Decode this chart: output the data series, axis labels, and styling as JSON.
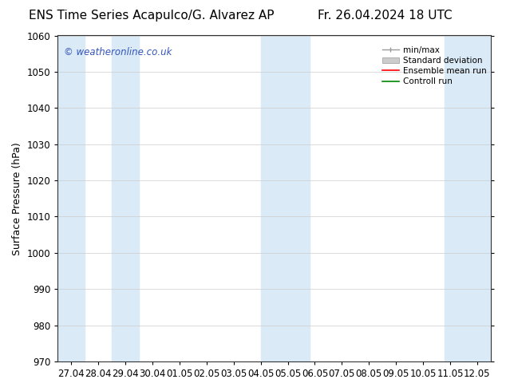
{
  "title_left": "ENS Time Series Acapulco/G. Alvarez AP",
  "title_right": "Fr. 26.04.2024 18 UTC",
  "ylabel": "Surface Pressure (hPa)",
  "ylim": [
    970,
    1060
  ],
  "yticks": [
    970,
    980,
    990,
    1000,
    1010,
    1020,
    1030,
    1040,
    1050,
    1060
  ],
  "xlabel_ticks": [
    "27.04",
    "28.04",
    "29.04",
    "30.04",
    "01.05",
    "02.05",
    "03.05",
    "04.05",
    "05.05",
    "06.05",
    "07.05",
    "08.05",
    "09.05",
    "10.05",
    "11.05",
    "12.05"
  ],
  "band_color": "#daeaf7",
  "watermark": "© weatheronline.co.uk",
  "watermark_color": "#3355bb",
  "legend_labels": [
    "min/max",
    "Standard deviation",
    "Ensemble mean run",
    "Controll run"
  ],
  "background_color": "#ffffff",
  "axes_color": "#000000",
  "title_fontsize": 11,
  "tick_fontsize": 8.5,
  "ylabel_fontsize": 9
}
